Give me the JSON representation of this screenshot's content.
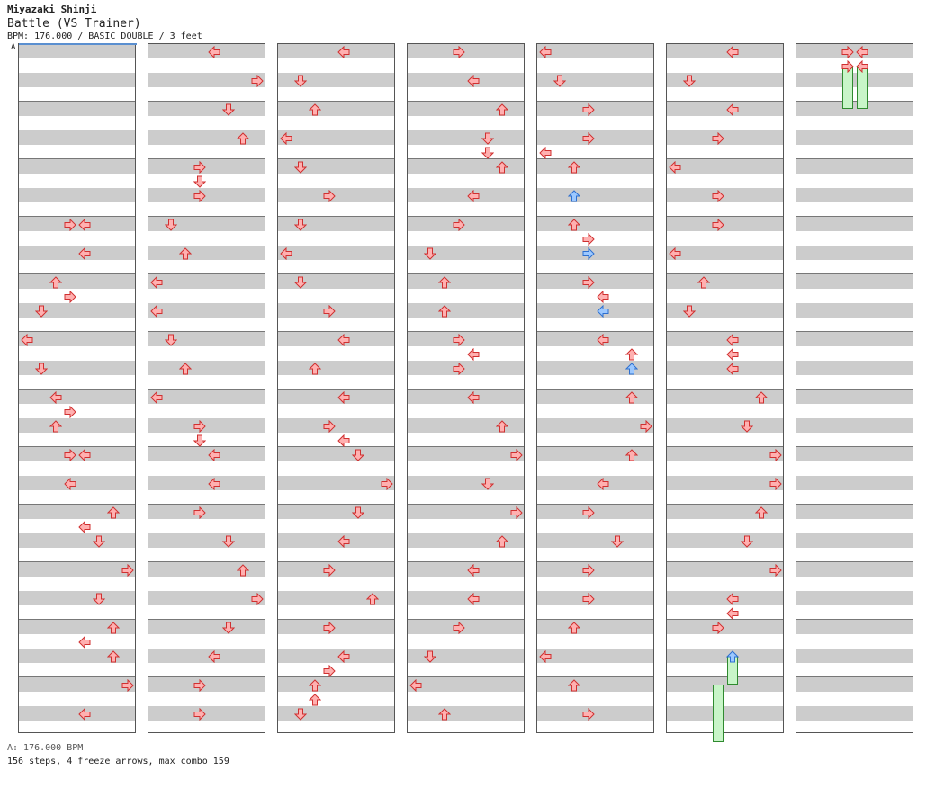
{
  "header": {
    "player": "Miyazaki Shinji",
    "title": "Battle (VS Trainer)",
    "info": "BPM: 176.000 / BASIC DOUBLE / 3 feet",
    "marker": "A"
  },
  "footer": {
    "bpm_line": "A: 176.000 BPM",
    "stats": "156 steps, 4 freeze arrows, max combo 159"
  },
  "colors": {
    "note": "#ffb0b0",
    "note_stroke": "#d03030",
    "note_alt": "#9cc8ff",
    "note_alt_stroke": "#2d6fd0",
    "band": "#cccccc",
    "freeze": "#c8f5c8",
    "freeze_stroke": "#2f8a2f"
  },
  "chart": {
    "lanes": 8,
    "measures_per_column": 12,
    "rows_per_measure": 4,
    "columns": [
      {
        "notes": [
          {
            "m": 3,
            "r": 0,
            "l": 3,
            "d": "R"
          },
          {
            "m": 3,
            "r": 0,
            "l": 4,
            "d": "L"
          },
          {
            "m": 3,
            "r": 2,
            "l": 4,
            "d": "L"
          },
          {
            "m": 4,
            "r": 0,
            "l": 2,
            "d": "U"
          },
          {
            "m": 4,
            "r": 1,
            "l": 3,
            "d": "R"
          },
          {
            "m": 4,
            "r": 2,
            "l": 1,
            "d": "D"
          },
          {
            "m": 5,
            "r": 0,
            "l": 0,
            "d": "L"
          },
          {
            "m": 5,
            "r": 2,
            "l": 1,
            "d": "D"
          },
          {
            "m": 6,
            "r": 0,
            "l": 2,
            "d": "L"
          },
          {
            "m": 6,
            "r": 1,
            "l": 3,
            "d": "R"
          },
          {
            "m": 6,
            "r": 2,
            "l": 2,
            "d": "U"
          },
          {
            "m": 7,
            "r": 0,
            "l": 3,
            "d": "R"
          },
          {
            "m": 7,
            "r": 0,
            "l": 4,
            "d": "L"
          },
          {
            "m": 7,
            "r": 2,
            "l": 3,
            "d": "L"
          },
          {
            "m": 8,
            "r": 0,
            "l": 6,
            "d": "U"
          },
          {
            "m": 8,
            "r": 1,
            "l": 4,
            "d": "L"
          },
          {
            "m": 8,
            "r": 2,
            "l": 5,
            "d": "D"
          },
          {
            "m": 9,
            "r": 0,
            "l": 7,
            "d": "R"
          },
          {
            "m": 9,
            "r": 2,
            "l": 5,
            "d": "D"
          },
          {
            "m": 10,
            "r": 0,
            "l": 6,
            "d": "U"
          },
          {
            "m": 10,
            "r": 1,
            "l": 4,
            "d": "L"
          },
          {
            "m": 10,
            "r": 2,
            "l": 6,
            "d": "U"
          },
          {
            "m": 11,
            "r": 0,
            "l": 7,
            "d": "R"
          },
          {
            "m": 11,
            "r": 2,
            "l": 4,
            "d": "L"
          }
        ]
      },
      {
        "notes": [
          {
            "m": 0,
            "r": 0,
            "l": 4,
            "d": "L"
          },
          {
            "m": 0,
            "r": 2,
            "l": 7,
            "d": "R"
          },
          {
            "m": 1,
            "r": 0,
            "l": 5,
            "d": "D"
          },
          {
            "m": 1,
            "r": 2,
            "l": 6,
            "d": "U"
          },
          {
            "m": 2,
            "r": 0,
            "l": 3,
            "d": "R"
          },
          {
            "m": 2,
            "r": 1,
            "l": 3,
            "d": "D"
          },
          {
            "m": 2,
            "r": 2,
            "l": 3,
            "d": "R"
          },
          {
            "m": 3,
            "r": 0,
            "l": 1,
            "d": "D"
          },
          {
            "m": 3,
            "r": 2,
            "l": 2,
            "d": "U"
          },
          {
            "m": 4,
            "r": 0,
            "l": 0,
            "d": "L"
          },
          {
            "m": 4,
            "r": 2,
            "l": 0,
            "d": "L"
          },
          {
            "m": 5,
            "r": 0,
            "l": 1,
            "d": "D"
          },
          {
            "m": 5,
            "r": 2,
            "l": 2,
            "d": "U"
          },
          {
            "m": 6,
            "r": 0,
            "l": 0,
            "d": "L"
          },
          {
            "m": 6,
            "r": 2,
            "l": 3,
            "d": "R"
          },
          {
            "m": 6,
            "r": 3,
            "l": 3,
            "d": "D"
          },
          {
            "m": 7,
            "r": 0,
            "l": 4,
            "d": "L"
          },
          {
            "m": 7,
            "r": 2,
            "l": 4,
            "d": "L"
          },
          {
            "m": 8,
            "r": 0,
            "l": 3,
            "d": "R"
          },
          {
            "m": 8,
            "r": 2,
            "l": 5,
            "d": "D"
          },
          {
            "m": 9,
            "r": 0,
            "l": 6,
            "d": "U"
          },
          {
            "m": 9,
            "r": 2,
            "l": 7,
            "d": "R"
          },
          {
            "m": 10,
            "r": 0,
            "l": 5,
            "d": "D"
          },
          {
            "m": 10,
            "r": 2,
            "l": 4,
            "d": "L"
          },
          {
            "m": 11,
            "r": 0,
            "l": 3,
            "d": "R"
          },
          {
            "m": 11,
            "r": 2,
            "l": 3,
            "d": "R"
          }
        ]
      },
      {
        "notes": [
          {
            "m": 0,
            "r": 0,
            "l": 4,
            "d": "L"
          },
          {
            "m": 0,
            "r": 2,
            "l": 1,
            "d": "D"
          },
          {
            "m": 1,
            "r": 0,
            "l": 2,
            "d": "U"
          },
          {
            "m": 1,
            "r": 2,
            "l": 0,
            "d": "L"
          },
          {
            "m": 2,
            "r": 0,
            "l": 1,
            "d": "D"
          },
          {
            "m": 2,
            "r": 2,
            "l": 3,
            "d": "R"
          },
          {
            "m": 3,
            "r": 0,
            "l": 1,
            "d": "D"
          },
          {
            "m": 3,
            "r": 2,
            "l": 0,
            "d": "L"
          },
          {
            "m": 4,
            "r": 0,
            "l": 1,
            "d": "D"
          },
          {
            "m": 4,
            "r": 2,
            "l": 3,
            "d": "R"
          },
          {
            "m": 5,
            "r": 0,
            "l": 4,
            "d": "L"
          },
          {
            "m": 5,
            "r": 2,
            "l": 2,
            "d": "U"
          },
          {
            "m": 6,
            "r": 0,
            "l": 4,
            "d": "L"
          },
          {
            "m": 6,
            "r": 2,
            "l": 3,
            "d": "R"
          },
          {
            "m": 6,
            "r": 3,
            "l": 4,
            "d": "L"
          },
          {
            "m": 7,
            "r": 0,
            "l": 5,
            "d": "D"
          },
          {
            "m": 7,
            "r": 2,
            "l": 7,
            "d": "R"
          },
          {
            "m": 8,
            "r": 0,
            "l": 5,
            "d": "D"
          },
          {
            "m": 8,
            "r": 2,
            "l": 4,
            "d": "L"
          },
          {
            "m": 9,
            "r": 0,
            "l": 3,
            "d": "R"
          },
          {
            "m": 9,
            "r": 2,
            "l": 6,
            "d": "U"
          },
          {
            "m": 10,
            "r": 0,
            "l": 3,
            "d": "R"
          },
          {
            "m": 10,
            "r": 2,
            "l": 4,
            "d": "L"
          },
          {
            "m": 10,
            "r": 3,
            "l": 3,
            "d": "R"
          },
          {
            "m": 11,
            "r": 0,
            "l": 2,
            "d": "U"
          },
          {
            "m": 11,
            "r": 1,
            "l": 2,
            "d": "U"
          },
          {
            "m": 11,
            "r": 2,
            "l": 1,
            "d": "D"
          }
        ]
      },
      {
        "notes": [
          {
            "m": 0,
            "r": 0,
            "l": 3,
            "d": "R"
          },
          {
            "m": 0,
            "r": 2,
            "l": 4,
            "d": "L"
          },
          {
            "m": 1,
            "r": 0,
            "l": 6,
            "d": "U"
          },
          {
            "m": 1,
            "r": 2,
            "l": 5,
            "d": "D"
          },
          {
            "m": 1,
            "r": 3,
            "l": 5,
            "d": "D"
          },
          {
            "m": 2,
            "r": 0,
            "l": 6,
            "d": "U"
          },
          {
            "m": 2,
            "r": 2,
            "l": 4,
            "d": "L"
          },
          {
            "m": 3,
            "r": 0,
            "l": 3,
            "d": "R"
          },
          {
            "m": 3,
            "r": 2,
            "l": 1,
            "d": "D"
          },
          {
            "m": 4,
            "r": 0,
            "l": 2,
            "d": "U"
          },
          {
            "m": 4,
            "r": 2,
            "l": 2,
            "d": "U"
          },
          {
            "m": 5,
            "r": 0,
            "l": 3,
            "d": "R"
          },
          {
            "m": 5,
            "r": 1,
            "l": 4,
            "d": "L"
          },
          {
            "m": 5,
            "r": 2,
            "l": 3,
            "d": "R"
          },
          {
            "m": 6,
            "r": 0,
            "l": 4,
            "d": "L"
          },
          {
            "m": 6,
            "r": 2,
            "l": 6,
            "d": "U"
          },
          {
            "m": 7,
            "r": 0,
            "l": 7,
            "d": "R"
          },
          {
            "m": 7,
            "r": 2,
            "l": 5,
            "d": "D"
          },
          {
            "m": 8,
            "r": 0,
            "l": 7,
            "d": "R"
          },
          {
            "m": 8,
            "r": 2,
            "l": 6,
            "d": "U"
          },
          {
            "m": 9,
            "r": 0,
            "l": 4,
            "d": "L"
          },
          {
            "m": 9,
            "r": 2,
            "l": 4,
            "d": "L"
          },
          {
            "m": 10,
            "r": 0,
            "l": 3,
            "d": "R"
          },
          {
            "m": 10,
            "r": 2,
            "l": 1,
            "d": "D"
          },
          {
            "m": 11,
            "r": 0,
            "l": 0,
            "d": "L"
          },
          {
            "m": 11,
            "r": 2,
            "l": 2,
            "d": "U"
          }
        ]
      },
      {
        "notes": [
          {
            "m": 0,
            "r": 0,
            "l": 0,
            "d": "L"
          },
          {
            "m": 0,
            "r": 2,
            "l": 1,
            "d": "D"
          },
          {
            "m": 1,
            "r": 0,
            "l": 3,
            "d": "R"
          },
          {
            "m": 1,
            "r": 2,
            "l": 3,
            "d": "R"
          },
          {
            "m": 1,
            "r": 3,
            "l": 0,
            "d": "L"
          },
          {
            "m": 2,
            "r": 0,
            "l": 2,
            "d": "U"
          },
          {
            "m": 2,
            "r": 2,
            "l": 2,
            "d": "U",
            "c": "b"
          },
          {
            "m": 3,
            "r": 0,
            "l": 2,
            "d": "U"
          },
          {
            "m": 3,
            "r": 1,
            "l": 3,
            "d": "R"
          },
          {
            "m": 3,
            "r": 2,
            "l": 3,
            "d": "R",
            "c": "b"
          },
          {
            "m": 4,
            "r": 0,
            "l": 3,
            "d": "R"
          },
          {
            "m": 4,
            "r": 1,
            "l": 4,
            "d": "L"
          },
          {
            "m": 4,
            "r": 2,
            "l": 4,
            "d": "L",
            "c": "b"
          },
          {
            "m": 5,
            "r": 0,
            "l": 4,
            "d": "L"
          },
          {
            "m": 5,
            "r": 1,
            "l": 6,
            "d": "U"
          },
          {
            "m": 5,
            "r": 2,
            "l": 6,
            "d": "U",
            "c": "b"
          },
          {
            "m": 6,
            "r": 0,
            "l": 6,
            "d": "U"
          },
          {
            "m": 6,
            "r": 2,
            "l": 7,
            "d": "R"
          },
          {
            "m": 7,
            "r": 0,
            "l": 6,
            "d": "U"
          },
          {
            "m": 7,
            "r": 2,
            "l": 4,
            "d": "L"
          },
          {
            "m": 8,
            "r": 0,
            "l": 3,
            "d": "R"
          },
          {
            "m": 8,
            "r": 2,
            "l": 5,
            "d": "D"
          },
          {
            "m": 9,
            "r": 0,
            "l": 3,
            "d": "R"
          },
          {
            "m": 9,
            "r": 2,
            "l": 3,
            "d": "R"
          },
          {
            "m": 10,
            "r": 0,
            "l": 2,
            "d": "U"
          },
          {
            "m": 10,
            "r": 2,
            "l": 0,
            "d": "L"
          },
          {
            "m": 11,
            "r": 0,
            "l": 2,
            "d": "U"
          },
          {
            "m": 11,
            "r": 2,
            "l": 3,
            "d": "R"
          }
        ]
      },
      {
        "notes": [
          {
            "m": 0,
            "r": 0,
            "l": 4,
            "d": "L"
          },
          {
            "m": 0,
            "r": 2,
            "l": 1,
            "d": "D"
          },
          {
            "m": 1,
            "r": 0,
            "l": 4,
            "d": "L"
          },
          {
            "m": 1,
            "r": 2,
            "l": 3,
            "d": "R"
          },
          {
            "m": 2,
            "r": 0,
            "l": 0,
            "d": "L"
          },
          {
            "m": 2,
            "r": 2,
            "l": 3,
            "d": "R"
          },
          {
            "m": 3,
            "r": 0,
            "l": 3,
            "d": "R"
          },
          {
            "m": 3,
            "r": 2,
            "l": 0,
            "d": "L"
          },
          {
            "m": 4,
            "r": 0,
            "l": 2,
            "d": "U"
          },
          {
            "m": 4,
            "r": 2,
            "l": 1,
            "d": "D"
          },
          {
            "m": 5,
            "r": 0,
            "l": 4,
            "d": "L"
          },
          {
            "m": 5,
            "r": 1,
            "l": 4,
            "d": "L"
          },
          {
            "m": 5,
            "r": 2,
            "l": 4,
            "d": "L"
          },
          {
            "m": 6,
            "r": 0,
            "l": 6,
            "d": "U"
          },
          {
            "m": 6,
            "r": 2,
            "l": 5,
            "d": "D"
          },
          {
            "m": 7,
            "r": 0,
            "l": 7,
            "d": "R"
          },
          {
            "m": 7,
            "r": 2,
            "l": 7,
            "d": "R"
          },
          {
            "m": 8,
            "r": 0,
            "l": 6,
            "d": "U"
          },
          {
            "m": 8,
            "r": 2,
            "l": 5,
            "d": "D"
          },
          {
            "m": 9,
            "r": 0,
            "l": 7,
            "d": "R"
          },
          {
            "m": 9,
            "r": 2,
            "l": 4,
            "d": "L"
          },
          {
            "m": 9,
            "r": 3,
            "l": 4,
            "d": "L"
          },
          {
            "m": 10,
            "r": 0,
            "l": 3,
            "d": "R"
          },
          {
            "m": 10,
            "r": 2,
            "l": 4,
            "d": "U",
            "c": "b"
          }
        ],
        "freezes": [
          {
            "l": 4,
            "start": [
              10,
              2
            ],
            "end": [
              11,
              0
            ]
          },
          {
            "l": 3,
            "start": [
              11,
              0
            ],
            "end": [
              12,
              0
            ]
          }
        ]
      },
      {
        "notes": [
          {
            "m": 0,
            "r": 0,
            "l": 3,
            "d": "R"
          },
          {
            "m": 0,
            "r": 0,
            "l": 4,
            "d": "L"
          },
          {
            "m": 0,
            "r": 1,
            "l": 3,
            "d": "R"
          },
          {
            "m": 0,
            "r": 1,
            "l": 4,
            "d": "L"
          }
        ],
        "freezes": [
          {
            "l": 3,
            "start": [
              0,
              0
            ],
            "end": [
              0,
              0.5
            ],
            "nodraw": true
          },
          {
            "l": 3,
            "start": [
              0,
              1
            ],
            "end": [
              1,
              0
            ]
          },
          {
            "l": 4,
            "start": [
              0,
              1
            ],
            "end": [
              1,
              0
            ]
          }
        ]
      }
    ]
  }
}
